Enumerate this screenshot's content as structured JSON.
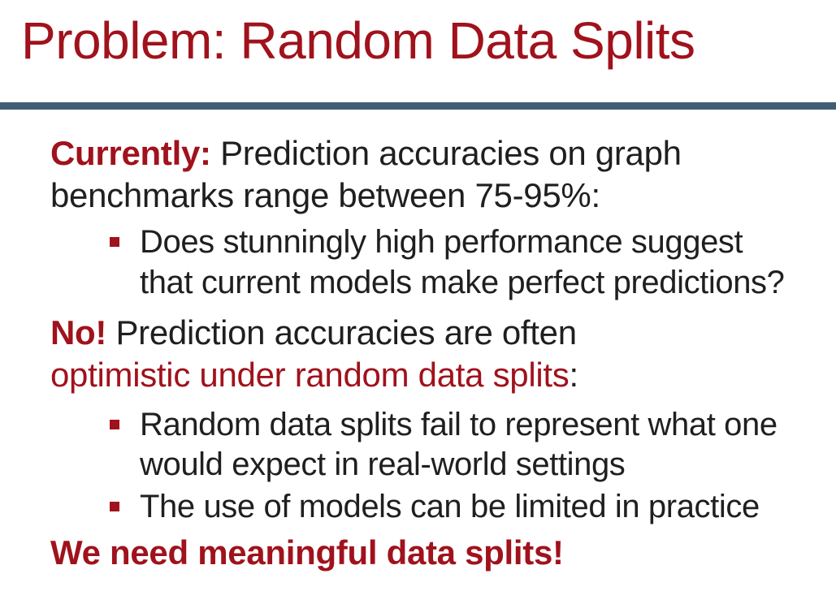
{
  "slide": {
    "title": "Problem: Random Data Splits",
    "accent_color": "#a0121c",
    "rule_color": "#3f5e73",
    "section1": {
      "lead": "Currently:",
      "line1_rest": " Prediction accuracies on graph",
      "line2": "benchmarks range between 75-95%:",
      "bullets": [
        {
          "line1": "Does stunningly high performance suggest",
          "line2": "that current models make perfect predictions?"
        }
      ]
    },
    "section2": {
      "lead": "No!",
      "line1_rest": " Prediction accuracies are often",
      "line2_red": "optimistic under random data splits",
      "line2_tail": ":",
      "bullets": [
        {
          "line1": "Random data splits fail to represent what one",
          "line2": "would expect in real-world settings"
        },
        {
          "line1": "The use of models can be limited in practice"
        }
      ]
    },
    "closing": "We need meaningful data splits!"
  }
}
